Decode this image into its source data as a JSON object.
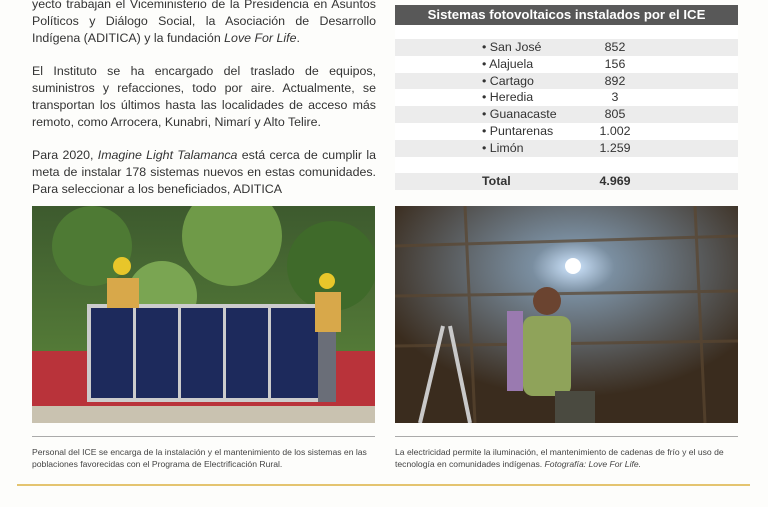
{
  "article": {
    "paragraphs": [
      "yecto trabajan el Viceministerio de la Presidencia en Asuntos Políticos y Diálogo Social, la Asociación de Desarrollo Indígena (ADITICA) y la fundación ",
      "El Instituto se ha encargado del traslado de equipos, suministros y refacciones, todo por aire. Actualmente, se transportan los últimos hasta las localidades de acceso más remoto, como Arrocera, Kunabri, Nimarí y Alto Telire.",
      "Para 2020, ",
      " está cerca de cumplir la meta de instalar 178 sistemas nuevos en estas comunidades. Para seleccionar a los beneficiados, ADITICA"
    ],
    "italic_love": "Love For Life",
    "italic_period": ".",
    "italic_project": "Imagine Light Talamanca"
  },
  "table": {
    "title": "Sistemas fotovoltaicos instalados por el ICE",
    "rows": [
      {
        "name": "• San José",
        "value": "852"
      },
      {
        "name": "• Alajuela",
        "value": "156"
      },
      {
        "name": "• Cartago",
        "value": "892"
      },
      {
        "name": "• Heredia",
        "value": "3"
      },
      {
        "name": "• Guanacaste",
        "value": "805"
      },
      {
        "name": "• Puntarenas",
        "value": "1.002"
      },
      {
        "name": "• Limón",
        "value": "1.259"
      }
    ],
    "total_label": "Total",
    "total_value": "4.969"
  },
  "captions": {
    "left": "Personal del ICE se encarga de la instalación y el mantenimiento de los sistemas en las poblaciones favorecidas con el Programa de Electrificación Rural.",
    "right": "La electricidad permite la iluminación, el mantenimiento de cadenas de frío y el uso de tecnología en comunidades indígenas. ",
    "right_credit": "Fotografía: Love For Life."
  },
  "colors": {
    "table_header": "#585858",
    "rule_gold": "#e4c470"
  }
}
